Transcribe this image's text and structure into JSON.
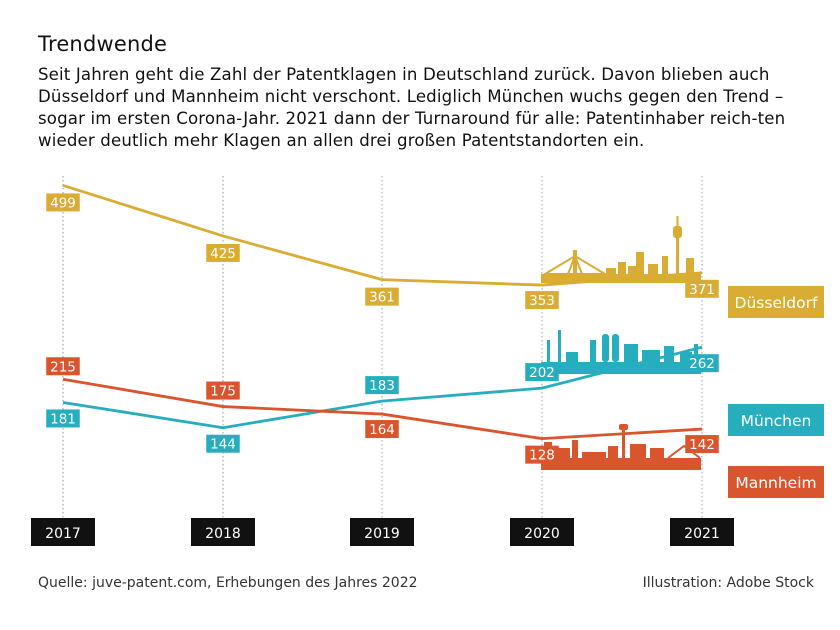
{
  "header": {
    "title": "Trendwende",
    "subtitle": "Seit Jahren geht die Zahl der Patentklagen in Deutschland zurück. Davon blieben auch Düsseldorf und Mannheim nicht verschont. Lediglich München wuchs gegen den Trend – sogar im ersten Corona-Jahr. 2021 dann der Turnaround für alle: Patentinhaber reich-ten wieder deutlich mehr Klagen an allen drei großen Patentstandorten ein."
  },
  "footer": {
    "source": "Quelle: juve-patent.com, Erhebungen des Jahres 2022",
    "credit": "Illustration: Adobe Stock"
  },
  "chart_data": {
    "type": "line",
    "title": "Trendwende",
    "x": [
      "2017",
      "2018",
      "2019",
      "2020",
      "2021"
    ],
    "ylim": [
      100,
      520
    ],
    "grid": "vertical dotted lines at each year",
    "legend": "right, labels at end of lines",
    "series": [
      {
        "name": "Düsseldorf",
        "color": "#D9AC33",
        "values": [
          499,
          425,
          361,
          353,
          371
        ]
      },
      {
        "name": "München",
        "color": "#26AEBE",
        "values": [
          181,
          144,
          183,
          202,
          262
        ]
      },
      {
        "name": "Mannheim",
        "color": "#D9552E",
        "values": [
          215,
          175,
          164,
          128,
          142
        ]
      }
    ],
    "illustrations": [
      "dusseldorf-skyline-icon",
      "munich-skyline-icon",
      "mannheim-skyline-icon"
    ]
  }
}
